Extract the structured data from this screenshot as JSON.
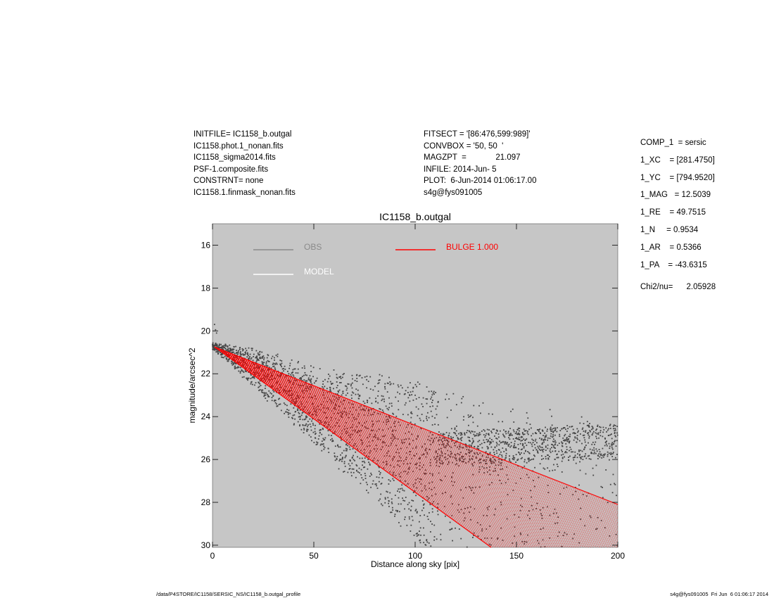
{
  "header": {
    "left": [
      "INITFILE= IC1158_b.outgal",
      "IC1158.phot.1_nonan.fits",
      "IC1158_sigma2014.fits",
      "PSF-1.composite.fits",
      "CONSTRNT= none",
      "IC1158.1.finmask_nonan.fits"
    ],
    "middle": [
      "FITSECT = '[86:476,599:989]'",
      "CONVBOX = '50, 50  '",
      "MAGZPT  =             21.097",
      "INFILE: 2014-Jun- 5",
      "PLOT:  6-Jun-2014 01:06:17.00",
      "s4g@fys091005"
    ],
    "right": [
      "COMP_1  = sersic",
      "1_XC    = [281.4750]",
      "1_YC    = [794.9520]",
      "1_MAG   = 12.5039",
      "1_RE    = 49.7515",
      "1_N     = 0.9534",
      "1_AR    = 0.5366",
      "1_PA    = -43.6315"
    ],
    "chi2": "Chi2/nu=      2.05928"
  },
  "footer": {
    "left": "/data/P4STORE/IC1158/SERSIC_NS/IC1158_b.outgal_profile",
    "right": "s4g@fys091005  Fri Jun  6 01:06:17 2014"
  },
  "colors": {
    "plot_bg": "#c6c6c6",
    "obs": "#444444",
    "obs_legend": "#8a8a8a",
    "model": "#ffffff",
    "bulge": "#ff0000"
  },
  "chart_data": {
    "type": "scatter",
    "title": "IC1158_b.outgal",
    "xlabel": "Distance along sky [pix]",
    "ylabel": "magnitude/arcsec^2",
    "xlim": [
      0,
      200
    ],
    "ylim": [
      30.1,
      15.0
    ],
    "y_inverted": true,
    "xticks": [
      0,
      50,
      100,
      150,
      200
    ],
    "yticks": [
      16,
      18,
      20,
      22,
      24,
      26,
      28,
      30
    ],
    "grid": false,
    "legend": [
      {
        "name": "OBS",
        "style": "line",
        "color": "#8a8a8a"
      },
      {
        "name": "MODEL",
        "style": "line",
        "color": "#ffffff"
      },
      {
        "name": "BULGE  1.000",
        "style": "line",
        "color": "#ff0000"
      }
    ],
    "series": [
      {
        "name": "OBS",
        "kind": "scatter-band",
        "x_range": [
          0,
          200
        ],
        "envelope_start": 20.7,
        "bright_edge_at_200": 24.4,
        "faint_edge_slope": 0.098,
        "sky_floor": 25.5
      },
      {
        "name": "BULGE  1.000",
        "kind": "fan",
        "x_range": [
          1,
          200
        ],
        "start_mag": 20.75,
        "end_mag_min": 28.1,
        "end_mag_max_slope": 0.0685
      }
    ]
  }
}
